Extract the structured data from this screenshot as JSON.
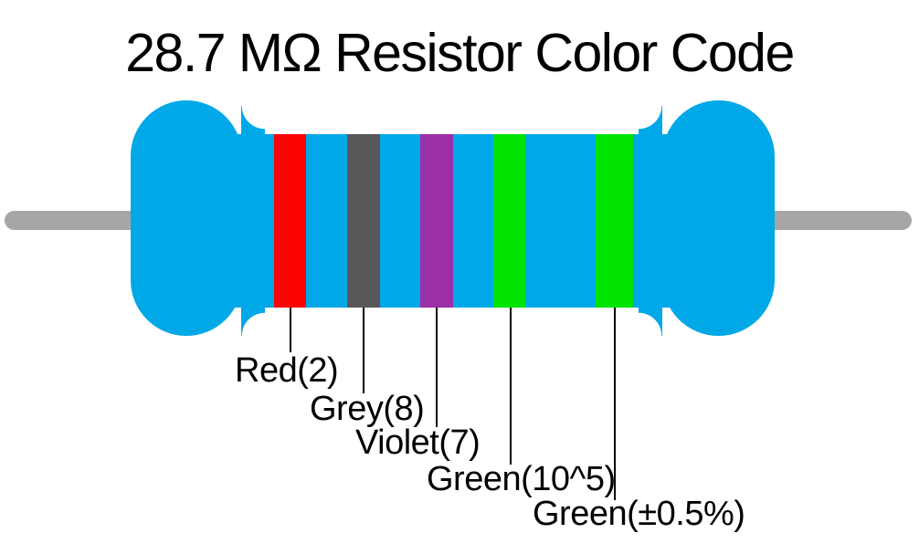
{
  "title": "28.7 MΩ Resistor Color Code",
  "resistor": {
    "body_color": "#00A8E8",
    "lead_color": "#A6A6A6",
    "bands": [
      {
        "color_name": "Red",
        "hex": "#FB0404",
        "label": "Red(2)"
      },
      {
        "color_name": "Grey",
        "hex": "#58585A",
        "label": "Grey(8)"
      },
      {
        "color_name": "Violet",
        "hex": "#9B2FA5",
        "label": "Violet(7)"
      },
      {
        "color_name": "Green",
        "hex": "#00E400",
        "label": "Green(10^5)"
      },
      {
        "color_name": "Green",
        "hex": "#00E400",
        "label": "Green(±0.5%)"
      }
    ]
  }
}
